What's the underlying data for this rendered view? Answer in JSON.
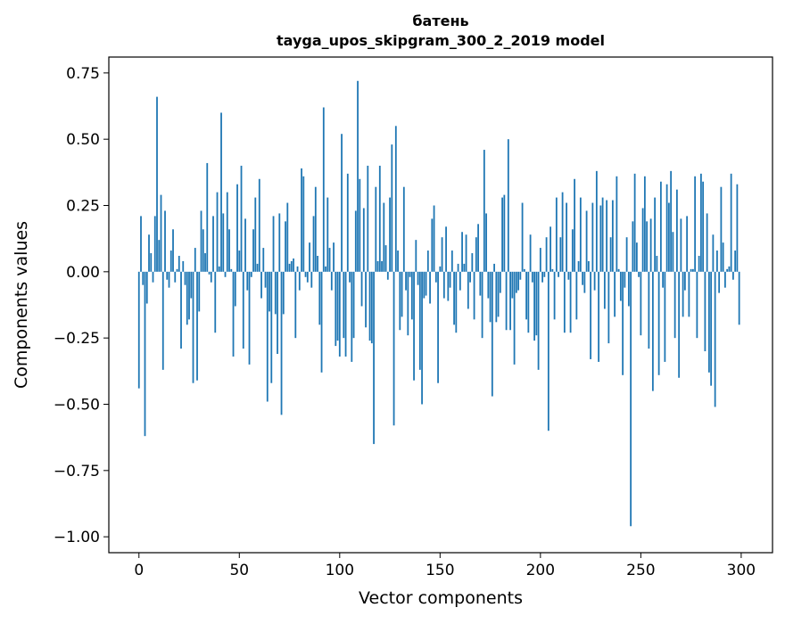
{
  "chart_data": {
    "type": "bar",
    "title": "батень",
    "subtitle": "tayga_upos_skipgram_300_2_2019 model",
    "xlabel": "Vector components",
    "ylabel": "Components values",
    "xlim": [
      -15,
      315.6
    ],
    "ylim": [
      -1.06,
      0.81
    ],
    "xticks": [
      "0",
      "50",
      "100",
      "150",
      "200",
      "250",
      "300"
    ],
    "yticks": [
      "0.75",
      "0.50",
      "0.25",
      "0.00",
      "−0.25",
      "−0.50",
      "−0.75",
      "−1.00"
    ],
    "grid": false,
    "color": "#1f77b4",
    "values": [
      -0.44,
      0.21,
      -0.05,
      -0.62,
      -0.12,
      0.14,
      0.07,
      -0.04,
      0.21,
      0.66,
      0.12,
      0.29,
      -0.37,
      0.23,
      -0.03,
      -0.06,
      0.08,
      0.16,
      -0.04,
      0.01,
      0.06,
      -0.29,
      0.04,
      -0.05,
      -0.2,
      -0.18,
      -0.1,
      -0.42,
      0.09,
      -0.41,
      -0.15,
      0.23,
      0.16,
      0.07,
      0.41,
      -0.01,
      -0.04,
      0.21,
      -0.23,
      0.3,
      0.02,
      0.6,
      0.22,
      -0.02,
      0.3,
      0.16,
      0.01,
      -0.32,
      -0.13,
      0.33,
      0.08,
      0.4,
      -0.29,
      0.2,
      -0.07,
      -0.35,
      -0.02,
      0.16,
      0.28,
      0.03,
      0.35,
      -0.1,
      0.09,
      -0.06,
      -0.49,
      -0.15,
      -0.42,
      0.21,
      -0.16,
      -0.31,
      0.22,
      -0.54,
      -0.16,
      0.19,
      0.26,
      0.03,
      0.04,
      0.05,
      -0.25,
      0.02,
      -0.07,
      0.39,
      0.36,
      -0.02,
      -0.04,
      0.11,
      -0.06,
      0.21,
      0.32,
      0.06,
      -0.2,
      -0.38,
      0.62,
      0.02,
      0.28,
      0.09,
      -0.07,
      0.11,
      -0.28,
      -0.26,
      -0.32,
      0.52,
      -0.25,
      -0.32,
      0.37,
      -0.04,
      -0.34,
      -0.25,
      0.23,
      0.72,
      0.35,
      -0.13,
      0.24,
      -0.21,
      0.4,
      -0.26,
      -0.27,
      -0.65,
      0.32,
      0.04,
      0.4,
      0.04,
      0.26,
      0.1,
      -0.03,
      0.28,
      0.48,
      -0.58,
      0.55,
      0.08,
      -0.22,
      -0.17,
      0.32,
      -0.07,
      -0.24,
      -0.02,
      -0.18,
      -0.41,
      0.12,
      -0.05,
      -0.37,
      -0.5,
      -0.1,
      -0.09,
      0.08,
      -0.12,
      0.2,
      0.25,
      -0.04,
      -0.42,
      0.02,
      0.13,
      -0.1,
      0.17,
      -0.11,
      -0.06,
      0.08,
      -0.2,
      -0.23,
      0.03,
      -0.07,
      0.15,
      0.03,
      0.14,
      -0.14,
      -0.04,
      0.07,
      -0.18,
      0.13,
      0.18,
      -0.09,
      -0.25,
      0.46,
      0.22,
      -0.1,
      -0.19,
      -0.47,
      0.03,
      -0.19,
      -0.17,
      -0.08,
      0.28,
      0.29,
      -0.22,
      0.5,
      -0.22,
      -0.1,
      -0.35,
      -0.08,
      -0.07,
      -0.03,
      0.26,
      0.01,
      -0.18,
      -0.23,
      0.14,
      -0.04,
      -0.26,
      -0.24,
      -0.37,
      0.09,
      -0.04,
      -0.02,
      0.13,
      -0.6,
      0.17,
      0.01,
      -0.18,
      0.28,
      -0.02,
      0.13,
      0.3,
      -0.23,
      0.26,
      -0.03,
      -0.23,
      0.16,
      0.35,
      -0.18,
      0.04,
      0.28,
      -0.05,
      -0.08,
      0.23,
      0.04,
      -0.33,
      0.26,
      -0.07,
      0.38,
      -0.34,
      0.25,
      0.28,
      -0.14,
      0.27,
      -0.27,
      0.13,
      0.27,
      -0.17,
      0.36,
      0.01,
      -0.11,
      -0.39,
      -0.06,
      0.13,
      -0.13,
      -0.96,
      0.19,
      0.37,
      0.11,
      -0.02,
      -0.24,
      0.24,
      0.36,
      0.19,
      -0.29,
      0.2,
      -0.45,
      0.28,
      0.06,
      -0.39,
      0.34,
      -0.06,
      -0.34,
      0.33,
      0.26,
      0.38,
      0.15,
      -0.25,
      0.31,
      -0.4,
      0.2,
      -0.17,
      -0.07,
      0.21,
      -0.17,
      0.01,
      0.01,
      0.36,
      -0.25,
      0.06,
      0.37,
      0.34,
      -0.3,
      0.22,
      -0.38,
      -0.43,
      0.14,
      -0.51,
      0.08,
      -0.08,
      0.32,
      0.11,
      -0.06,
      0.01,
      0.02,
      0.37,
      -0.03,
      0.08,
      0.33,
      -0.2
    ]
  }
}
